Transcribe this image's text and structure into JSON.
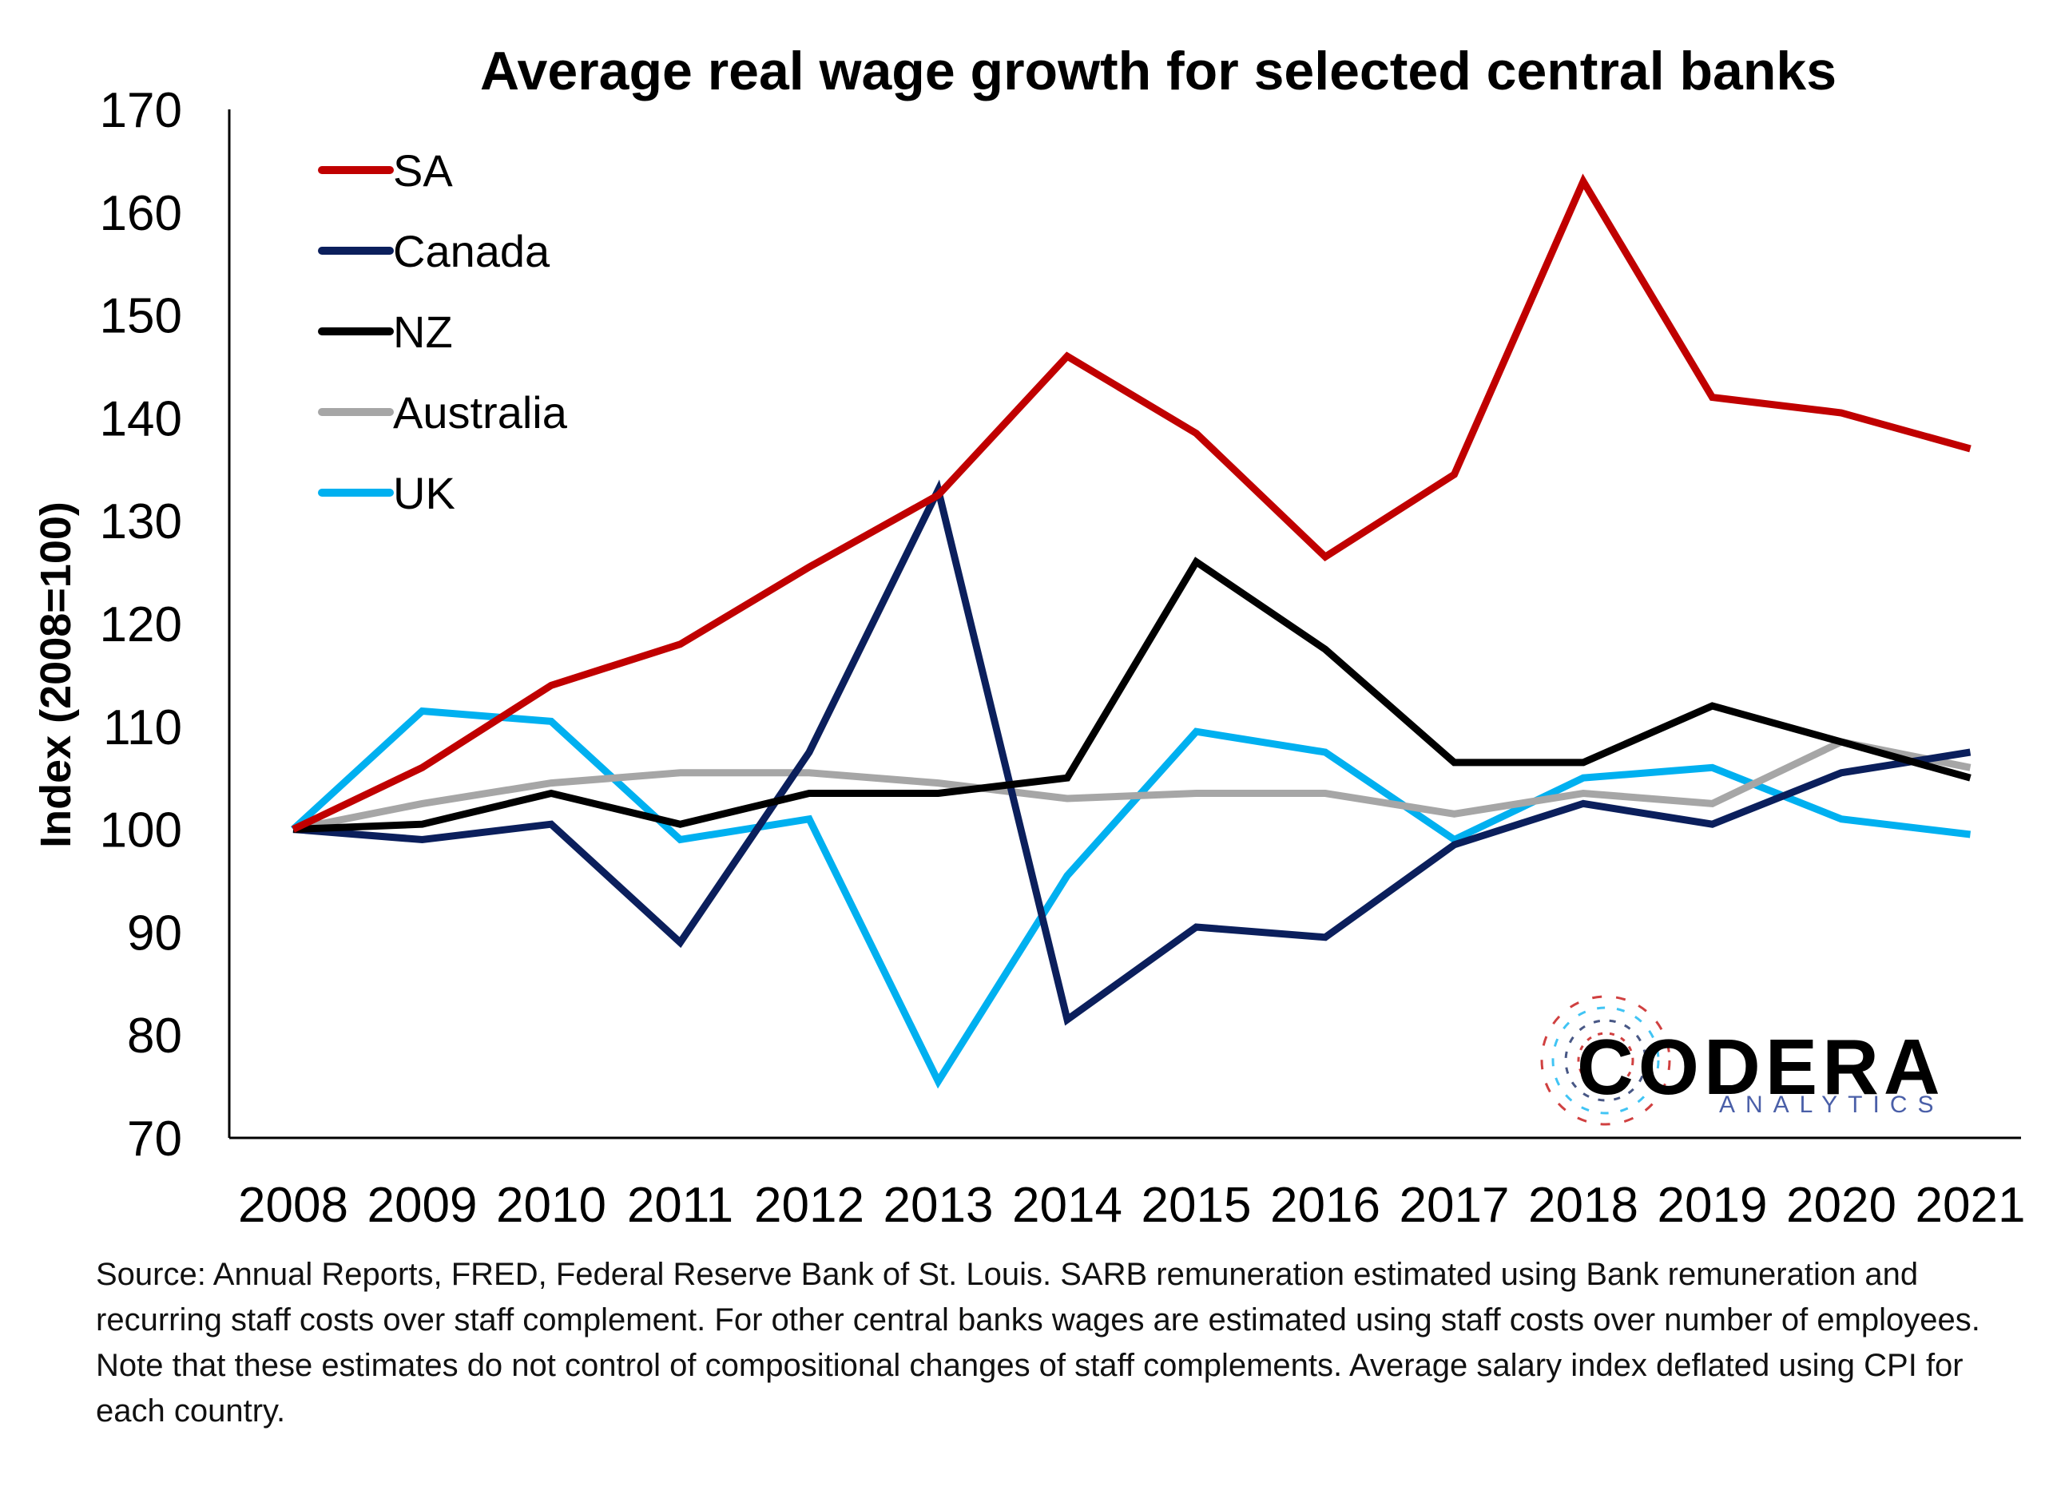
{
  "chart_data": {
    "type": "line",
    "title": "Average real wage growth for selected central banks",
    "ylabel": "Index (2008=100)",
    "xlabel": "",
    "ylim": [
      70,
      170
    ],
    "yticks": [
      "70",
      "80",
      "90",
      "100",
      "110",
      "120",
      "130",
      "140",
      "150",
      "160",
      "170"
    ],
    "categories": [
      "2008",
      "2009",
      "2010",
      "2011",
      "2012",
      "2013",
      "2014",
      "2015",
      "2016",
      "2017",
      "2018",
      "2019",
      "2020",
      "2021"
    ],
    "legend_position": "top-left",
    "series": [
      {
        "name": "SA",
        "color": "#c00000",
        "values": [
          100,
          106,
          114,
          118,
          125.5,
          132.5,
          146,
          138.5,
          126.5,
          134.5,
          163,
          142,
          140.5,
          137
        ]
      },
      {
        "name": "Canada",
        "color": "#0b1f5c",
        "values": [
          100,
          99,
          100.5,
          89,
          107.5,
          133,
          81.5,
          90.5,
          89.5,
          98.5,
          102.5,
          100.5,
          105.5,
          107.5
        ]
      },
      {
        "name": "NZ",
        "color": "#000000",
        "values": [
          100,
          100.5,
          103.5,
          100.5,
          103.5,
          103.5,
          105,
          126,
          117.5,
          106.5,
          106.5,
          112,
          108.5,
          105
        ]
      },
      {
        "name": "Australia",
        "color": "#a6a6a6",
        "values": [
          100,
          102.5,
          104.5,
          105.5,
          105.5,
          104.5,
          103,
          103.5,
          103.5,
          101.5,
          103.5,
          102.5,
          108.5,
          106
        ]
      },
      {
        "name": "UK",
        "color": "#00b0f0",
        "values": [
          100,
          111.5,
          110.5,
          99,
          101,
          75.5,
          95.5,
          109.5,
          107.5,
          99,
          105,
          106,
          101,
          99.5
        ]
      }
    ]
  },
  "source_note": "Source: Annual Reports, FRED, Federal Reserve Bank of St. Louis. SARB remuneration estimated using Bank remuneration and recurring staff costs over staff complement. For other central banks wages are estimated using staff costs over number of employees. Note that these estimates do not control of compositional changes of staff complements. Average salary index deflated using CPI for each country.",
  "logo": {
    "word": "CODERA",
    "sub": "ANALYTICS",
    "ring_colors": [
      "#c00000",
      "#0b1f5c",
      "#00b0f0"
    ]
  }
}
